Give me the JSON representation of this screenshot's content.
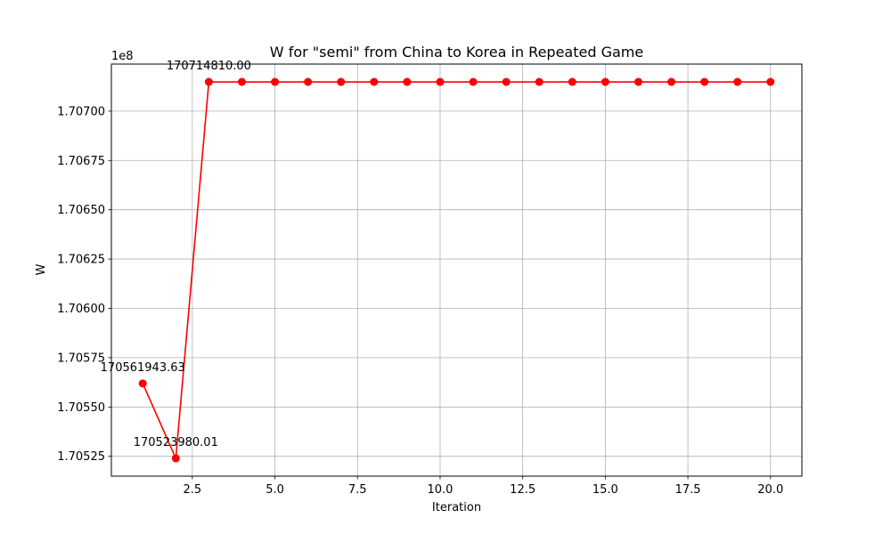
{
  "chart_data": {
    "type": "line",
    "title": "W for \"semi\" from China to Korea in Repeated Game",
    "xlabel": "Iteration",
    "ylabel": "W",
    "offset_label": "1e8",
    "x": [
      1,
      2,
      3,
      4,
      5,
      6,
      7,
      8,
      9,
      10,
      11,
      12,
      13,
      14,
      15,
      16,
      17,
      18,
      19,
      20
    ],
    "y": [
      170561943.63,
      170523980.01,
      170714810.0,
      170714810.0,
      170714810.0,
      170714810.0,
      170714810.0,
      170714810.0,
      170714810.0,
      170714810.0,
      170714810.0,
      170714810.0,
      170714810.0,
      170714810.0,
      170714810.0,
      170714810.0,
      170714810.0,
      170714810.0,
      170714810.0,
      170714810.0
    ],
    "xlim": [
      0.05,
      20.95
    ],
    "ylim": [
      170514938.5,
      170723851.5
    ],
    "xticks": [
      2.5,
      5.0,
      7.5,
      10.0,
      12.5,
      15.0,
      17.5,
      20.0
    ],
    "xtick_labels": [
      "2.5",
      "5.0",
      "7.5",
      "10.0",
      "12.5",
      "15.0",
      "17.5",
      "20.0"
    ],
    "yticks": [
      170525000,
      170550000,
      170575000,
      170600000,
      170625000,
      170650000,
      170675000,
      170700000
    ],
    "ytick_labels": [
      "1.70525",
      "1.70550",
      "1.70575",
      "1.70600",
      "1.70625",
      "1.70650",
      "1.70675",
      "1.70700"
    ],
    "annotations": [
      {
        "x": 1,
        "y": 170561943.63,
        "text": "170561943.63"
      },
      {
        "x": 2,
        "y": 170523980.01,
        "text": "170523980.01"
      },
      {
        "x": 3,
        "y": 170714810.0,
        "text": "170714810.00"
      }
    ],
    "grid": true,
    "color": "#ff0000",
    "marker": "circle"
  }
}
